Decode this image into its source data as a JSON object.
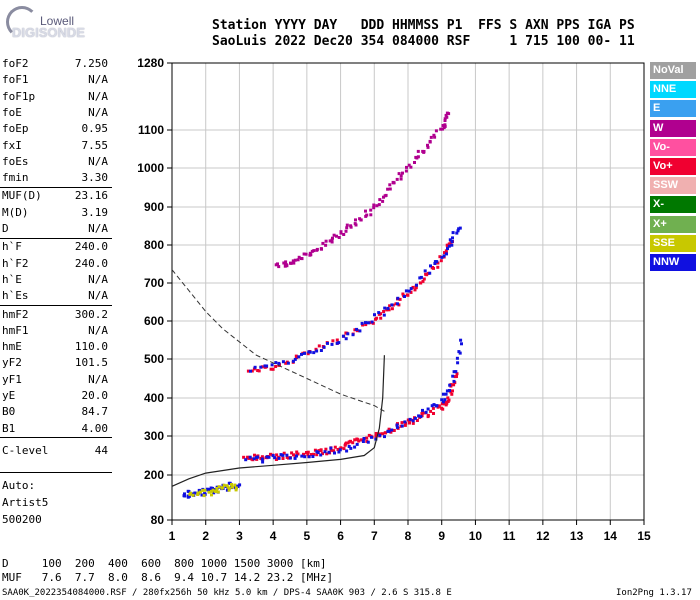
{
  "logo": {
    "line1": "Lowell",
    "line2": "DIGISONDE"
  },
  "header": {
    "line1": "Station YYYY DAY   DDD HHMMSS P1  FFS S AXN PPS IGA PS",
    "line2": "SaoLuis 2022 Dec20 354 084000 RSF     1 715 100 00- 11"
  },
  "params": [
    {
      "key": "foF2",
      "value": "7.250"
    },
    {
      "key": "foF1",
      "value": "N/A"
    },
    {
      "key": "foF1p",
      "value": "N/A"
    },
    {
      "key": "foE",
      "value": "N/A"
    },
    {
      "key": "foEp",
      "value": "0.95"
    },
    {
      "key": "fxI",
      "value": "7.55"
    },
    {
      "key": "foEs",
      "value": "N/A"
    },
    {
      "key": "fmin",
      "value": "3.30"
    },
    {
      "key": "MUF(D)",
      "value": "23.16"
    },
    {
      "key": "M(D)",
      "value": "3.19"
    },
    {
      "key": "D",
      "value": "N/A"
    },
    {
      "key": "h`F",
      "value": "240.0"
    },
    {
      "key": "h`F2",
      "value": "240.0"
    },
    {
      "key": "h`E",
      "value": "N/A"
    },
    {
      "key": "h`Es",
      "value": "N/A"
    },
    {
      "key": "hmF2",
      "value": "300.2"
    },
    {
      "key": "hmF1",
      "value": "N/A"
    },
    {
      "key": "hmE",
      "value": "110.0"
    },
    {
      "key": "yF2",
      "value": "101.5"
    },
    {
      "key": "yF1",
      "value": "N/A"
    },
    {
      "key": "yE",
      "value": "20.0"
    },
    {
      "key": "B0",
      "value": "84.7"
    },
    {
      "key": "B1",
      "value": "4.00"
    },
    {
      "key": "C-level",
      "value": "44"
    }
  ],
  "autoscale": {
    "line1": "Auto:",
    "line2": "Artist5",
    "line3": "500200"
  },
  "distance_table": {
    "row1": "D     100  200  400  600  800 1000 1500 3000 [km]",
    "row2": "MUF   7.6  7.7  8.0  8.6  9.4 10.7 14.2 23.2 [MHz]"
  },
  "footer": {
    "left": "SAA0K_2022354084000.RSF / 280fx256h 50 kHz 5.0 km / DPS-4 SAA0K 903 / 2.6 S 315.8 E",
    "right": "Ion2Png 1.3.17"
  },
  "legend": [
    {
      "label": "NoVal",
      "color": "#a0a0a0"
    },
    {
      "label": "NNE",
      "color": "#00d8ff"
    },
    {
      "label": "E",
      "color": "#3aa0f0"
    },
    {
      "label": "W",
      "color": "#b0008f"
    },
    {
      "label": "Vo-",
      "color": "#ff50a0"
    },
    {
      "label": "Vo+",
      "color": "#f00030"
    },
    {
      "label": "SSW",
      "color": "#f0b0b0"
    },
    {
      "label": "X-",
      "color": "#007800"
    },
    {
      "label": "X+",
      "color": "#70b050"
    },
    {
      "label": "SSE",
      "color": "#c8c800"
    },
    {
      "label": "NNW",
      "color": "#1010e0"
    }
  ],
  "chart_data": {
    "type": "scatter",
    "title": "",
    "xlabel": "",
    "ylabel": "",
    "xlim": [
      1,
      15
    ],
    "ylim": [
      80,
      1280
    ],
    "x_ticks": [
      1,
      2,
      3,
      4,
      5,
      6,
      7,
      8,
      9,
      10,
      11,
      12,
      13,
      14,
      15
    ],
    "y_ticks": [
      80,
      200,
      300,
      400,
      500,
      600,
      700,
      800,
      900,
      1000,
      1100,
      1280
    ],
    "grid": true,
    "y_scale": "nonlinear",
    "series": [
      {
        "color": "#f00030",
        "points": [
          [
            3.1,
            245
          ],
          [
            3.5,
            248
          ],
          [
            4,
            250
          ],
          [
            4.5,
            255
          ],
          [
            5,
            258
          ],
          [
            5.5,
            265
          ],
          [
            6,
            275
          ],
          [
            6.5,
            290
          ],
          [
            7,
            305
          ],
          [
            7.5,
            325
          ],
          [
            8,
            340
          ],
          [
            8.5,
            360
          ],
          [
            9,
            380
          ],
          [
            9.2,
            410
          ],
          [
            9.4,
            470
          ]
        ]
      },
      {
        "color": "#1010e0",
        "points": [
          [
            3.2,
            242
          ],
          [
            4,
            247
          ],
          [
            5,
            255
          ],
          [
            6,
            270
          ],
          [
            7,
            300
          ],
          [
            8,
            345
          ],
          [
            8.8,
            385
          ],
          [
            9.3,
            440
          ],
          [
            9.6,
            560
          ]
        ]
      },
      {
        "color": "#f00030",
        "points": [
          [
            3.2,
            475
          ],
          [
            4,
            485
          ],
          [
            5,
            520
          ],
          [
            6,
            560
          ],
          [
            7,
            610
          ],
          [
            7.5,
            640
          ],
          [
            8,
            680
          ],
          [
            8.5,
            720
          ],
          [
            9,
            775
          ],
          [
            9.3,
            820
          ]
        ]
      },
      {
        "color": "#1010e0",
        "points": [
          [
            3.3,
            478
          ],
          [
            4.5,
            500
          ],
          [
            5.5,
            535
          ],
          [
            6.5,
            585
          ],
          [
            7.5,
            645
          ],
          [
            8.5,
            730
          ],
          [
            9.2,
            800
          ],
          [
            9.5,
            860
          ]
        ]
      },
      {
        "color": "#b0008f",
        "points": [
          [
            4.1,
            745
          ],
          [
            4.5,
            760
          ],
          [
            5,
            780
          ],
          [
            5.5,
            805
          ],
          [
            6,
            835
          ],
          [
            6.5,
            870
          ],
          [
            7,
            905
          ],
          [
            7.5,
            960
          ],
          [
            8,
            1010
          ],
          [
            8.5,
            1060
          ],
          [
            9,
            1110
          ],
          [
            9.2,
            1150
          ]
        ]
      },
      {
        "color": "#1010e0",
        "points": [
          [
            1.3,
            150
          ],
          [
            1.6,
            155
          ],
          [
            2,
            160
          ],
          [
            2.3,
            165
          ],
          [
            2.7,
            175
          ],
          [
            3,
            180
          ]
        ]
      },
      {
        "color": "#c8c800",
        "points": [
          [
            1.5,
            152
          ],
          [
            2.1,
            158
          ],
          [
            2.5,
            170
          ],
          [
            2.9,
            172
          ]
        ]
      }
    ],
    "profile_curve": [
      [
        1,
        170
      ],
      [
        1.5,
        190
      ],
      [
        2,
        205
      ],
      [
        3,
        218
      ],
      [
        4,
        225
      ],
      [
        5,
        232
      ],
      [
        6,
        240
      ],
      [
        6.7,
        250
      ],
      [
        7,
        270
      ],
      [
        7.15,
        320
      ],
      [
        7.25,
        400
      ],
      [
        7.3,
        510
      ]
    ],
    "dashed_curve": [
      [
        1,
        735
      ],
      [
        1.5,
        680
      ],
      [
        2,
        625
      ],
      [
        2.5,
        580
      ],
      [
        3,
        545
      ],
      [
        3.5,
        510
      ],
      [
        4,
        490
      ],
      [
        4.5,
        470
      ],
      [
        5,
        450
      ],
      [
        5.5,
        430
      ],
      [
        6,
        410
      ],
      [
        6.5,
        395
      ],
      [
        7,
        380
      ],
      [
        7.3,
        365
      ]
    ]
  }
}
